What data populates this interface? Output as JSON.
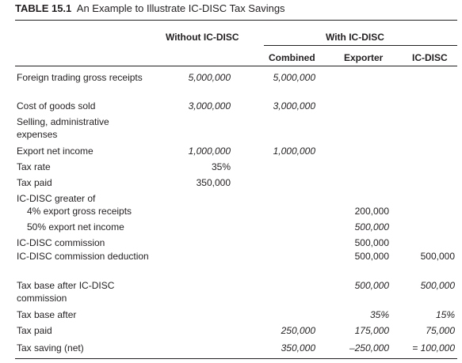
{
  "caption": {
    "table_no": "TABLE 15.1",
    "title": "An Example to Illustrate IC-DISC Tax Savings"
  },
  "headers": {
    "without": "Without IC-DISC",
    "with": "With IC-DISC",
    "combined": "Combined",
    "exporter": "Exporter",
    "icdisc": "IC-DISC"
  },
  "rows": [
    {
      "label": "Foreign trading gross receipts",
      "without": "5,000,000",
      "combined": "5,000,000",
      "exporter": "",
      "icdisc": ""
    },
    {
      "label": "Cost of goods sold",
      "without": "3,000,000",
      "combined": "3,000,000",
      "exporter": "",
      "icdisc": ""
    },
    {
      "label": "Selling, administrative expenses",
      "without": "",
      "combined": "",
      "exporter": "",
      "icdisc": ""
    },
    {
      "label": "Export net income",
      "without": "1,000,000",
      "combined": "1,000,000",
      "exporter": "",
      "icdisc": ""
    },
    {
      "label": "Tax rate",
      "without": "35%",
      "combined": "",
      "exporter": "",
      "icdisc": ""
    },
    {
      "label": "Tax paid",
      "without": "350,000",
      "combined": "",
      "exporter": "",
      "icdisc": ""
    },
    {
      "label": "IC-DISC greater of",
      "without": "",
      "combined": "",
      "exporter": "",
      "icdisc": ""
    },
    {
      "label": "4% export gross receipts",
      "without": "",
      "combined": "",
      "exporter": "200,000",
      "icdisc": ""
    },
    {
      "label": "50% export net income",
      "without": "",
      "combined": "",
      "exporter": "500,000",
      "icdisc": ""
    },
    {
      "label": "IC-DISC commission",
      "without": "",
      "combined": "",
      "exporter": "500,000",
      "icdisc": ""
    },
    {
      "label": "IC-DISC commission deduction",
      "without": "",
      "combined": "",
      "exporter": "500,000",
      "icdisc": "500,000"
    },
    {
      "label": "Tax base after IC-DISC commission",
      "without": "",
      "combined": "",
      "exporter": "500,000",
      "icdisc": "500,000"
    },
    {
      "label": "Tax base after",
      "without": "",
      "combined": "",
      "exporter": "35%",
      "icdisc": "15%"
    },
    {
      "label": "Tax paid",
      "without": "",
      "combined": "250,000",
      "exporter": "175,000",
      "icdisc": "75,000"
    },
    {
      "label": "Tax saving (net)",
      "without": "",
      "combined": "350,000",
      "exporter": "–250,000",
      "icdisc": "= 100,000"
    }
  ]
}
